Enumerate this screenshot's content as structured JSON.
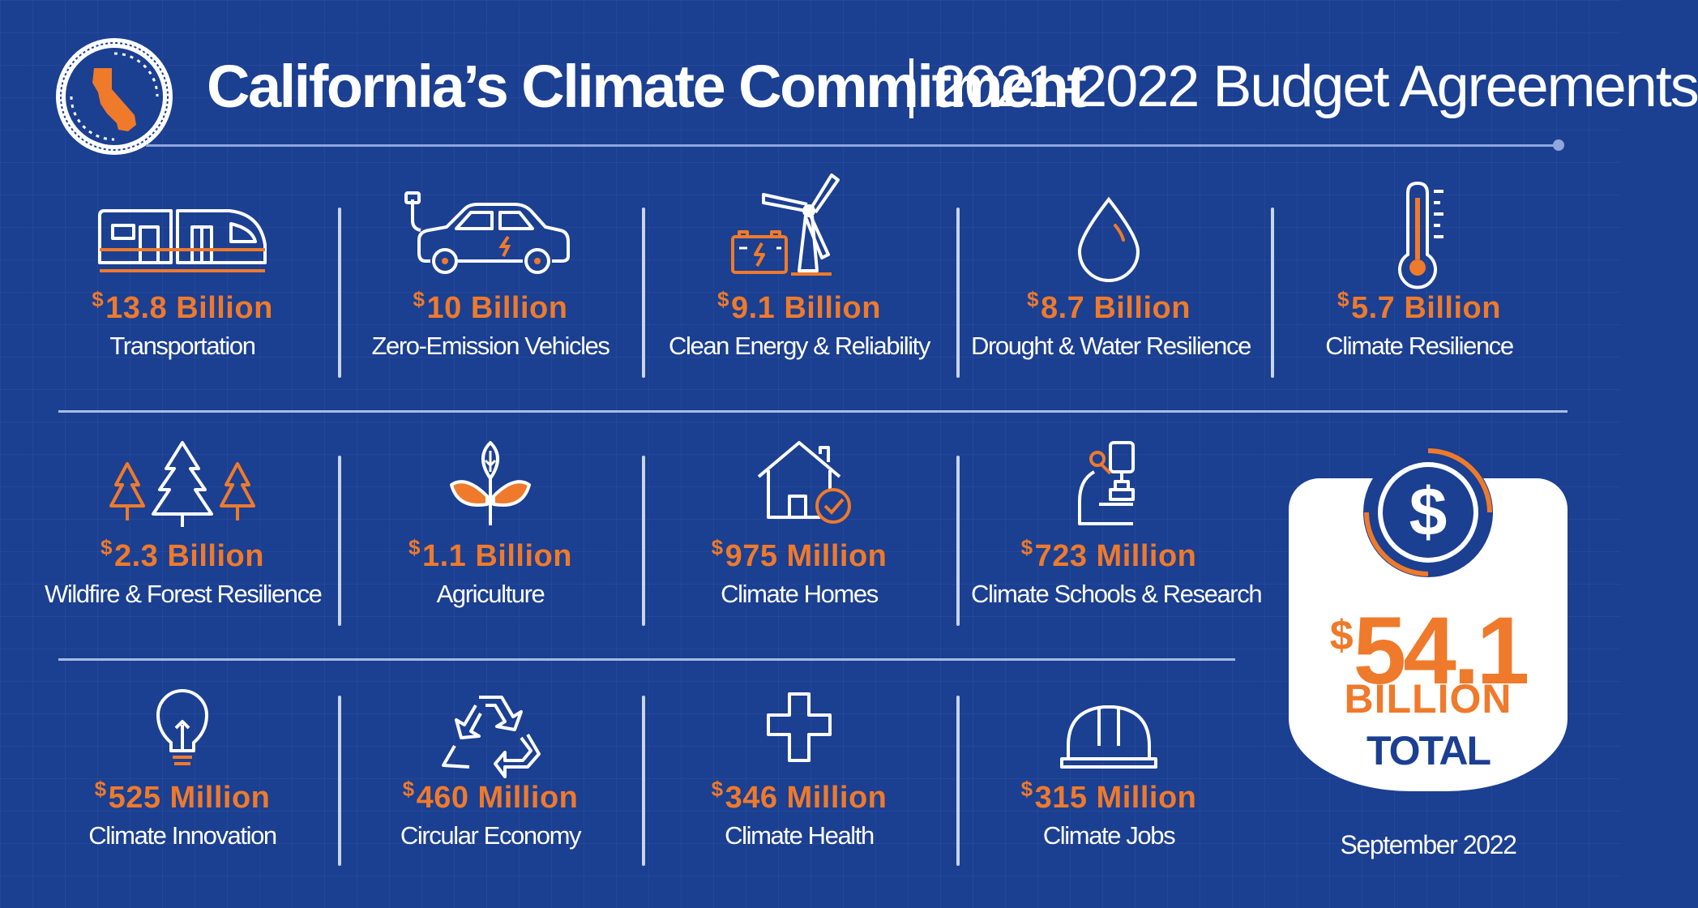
{
  "header": {
    "title": "California’s Climate Commitment",
    "subtitle": "2021-2022 Budget Agreements"
  },
  "items": [
    {
      "amount": "13.8 Billion",
      "label": "Transportation",
      "icon": "train-icon"
    },
    {
      "amount": "10 Billion",
      "label": "Zero-Emission Vehicles",
      "icon": "electric-car-icon"
    },
    {
      "amount": "9.1 Billion",
      "label": "Clean Energy & Reliability",
      "icon": "wind-turbine-battery-icon"
    },
    {
      "amount": "8.7 Billion",
      "label": "Drought & Water Resilience",
      "icon": "water-drop-icon"
    },
    {
      "amount": "5.7 Billion",
      "label": "Climate Resilience",
      "icon": "thermometer-icon"
    },
    {
      "amount": "2.3 Billion",
      "label": "Wildfire & Forest Resilience",
      "icon": "trees-icon"
    },
    {
      "amount": "1.1 Billion",
      "label": "Agriculture",
      "icon": "plant-icon"
    },
    {
      "amount": "975 Million",
      "label": "Climate Homes",
      "icon": "house-check-icon"
    },
    {
      "amount": "723 Million",
      "label": "Climate Schools & Research",
      "icon": "microscope-icon"
    },
    {
      "amount": "525 Million",
      "label": "Climate Innovation",
      "icon": "lightbulb-icon"
    },
    {
      "amount": "460 Million",
      "label": "Circular Economy",
      "icon": "recycle-icon"
    },
    {
      "amount": "346 Million",
      "label": "Climate Health",
      "icon": "health-cross-icon"
    },
    {
      "amount": "315 Million",
      "label": "Climate Jobs",
      "icon": "hard-hat-icon"
    }
  ],
  "currency_symbol": "$",
  "total": {
    "amount": "54.1",
    "unit": "BILLION",
    "word": "TOTAL"
  },
  "date": "September 2022",
  "colors": {
    "background": "#1b3f91",
    "accent": "#ef7a2b",
    "text": "#ffffff",
    "card": "#ffffff"
  }
}
